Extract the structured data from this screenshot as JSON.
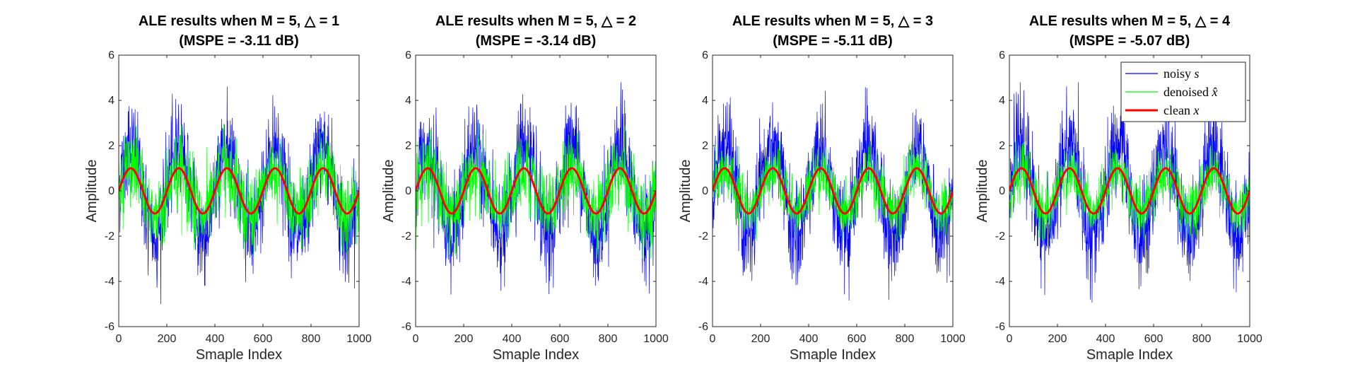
{
  "figure": {
    "background": "#ffffff"
  },
  "colors": {
    "noisy": "#0000ff",
    "denoised": "#00ff00",
    "clean": "#ff0000",
    "axis": "#262626"
  },
  "legend": {
    "placement": "top-right of fourth panel",
    "entries": [
      {
        "key": "noisy",
        "label": "noisy ",
        "var": "s"
      },
      {
        "key": "denoised",
        "label": "denoised ",
        "var": "x̂"
      },
      {
        "key": "clean",
        "label": "clean ",
        "var": "x"
      }
    ]
  },
  "chart_data": [
    {
      "type": "line",
      "title": "ALE results when M = 5, △ = 1",
      "subtitle": "(MSPE = -3.11 dB)",
      "xlabel": "Smaple Index",
      "ylabel": "Amplitude",
      "xlim": [
        0,
        1000
      ],
      "ylim": [
        -6,
        6
      ],
      "xticks": [
        0,
        200,
        400,
        600,
        800,
        1000
      ],
      "yticks": [
        -6,
        -4,
        -2,
        0,
        2,
        4,
        6
      ],
      "series": [
        {
          "key": "noisy",
          "description": "clean sinusoid plus slow sinusoid (period ~200) plus wide noise",
          "envelope_max": 4.8,
          "envelope_min": -5.0
        },
        {
          "key": "denoised",
          "envelope_max": 3.0,
          "envelope_min": -3.0
        },
        {
          "key": "clean",
          "amplitude": 1,
          "period": 200
        }
      ]
    },
    {
      "type": "line",
      "title": "ALE results when M = 5, △ = 2",
      "subtitle": "(MSPE = -3.14 dB)",
      "xlabel": "Smaple Index",
      "ylabel": "Amplitude",
      "xlim": [
        0,
        1000
      ],
      "ylim": [
        -6,
        6
      ],
      "xticks": [
        0,
        200,
        400,
        600,
        800,
        1000
      ],
      "yticks": [
        -6,
        -4,
        -2,
        0,
        2,
        4,
        6
      ],
      "series": [
        {
          "key": "noisy",
          "envelope_max": 4.8,
          "envelope_min": -5.0
        },
        {
          "key": "denoised",
          "envelope_max": 3.0,
          "envelope_min": -3.0
        },
        {
          "key": "clean",
          "amplitude": 1,
          "period": 200
        }
      ]
    },
    {
      "type": "line",
      "title": "ALE results when M = 5, △ = 3",
      "subtitle": "(MSPE = -5.11 dB)",
      "xlabel": "Smaple Index",
      "ylabel": "Amplitude",
      "xlim": [
        0,
        1000
      ],
      "ylim": [
        -6,
        6
      ],
      "xticks": [
        0,
        200,
        400,
        600,
        800,
        1000
      ],
      "yticks": [
        -6,
        -4,
        -2,
        0,
        2,
        4,
        6
      ],
      "series": [
        {
          "key": "noisy",
          "envelope_max": 4.8,
          "envelope_min": -5.0
        },
        {
          "key": "denoised",
          "envelope_max": 2.2,
          "envelope_min": -2.2
        },
        {
          "key": "clean",
          "amplitude": 1,
          "period": 200
        }
      ]
    },
    {
      "type": "line",
      "title": "ALE results when M = 5, △ = 4",
      "subtitle": "(MSPE = -5.07 dB)",
      "xlabel": "Smaple Index",
      "ylabel": "Amplitude",
      "xlim": [
        0,
        1000
      ],
      "ylim": [
        -6,
        6
      ],
      "xticks": [
        0,
        200,
        400,
        600,
        800,
        1000
      ],
      "yticks": [
        -6,
        -4,
        -2,
        0,
        2,
        4,
        6
      ],
      "series": [
        {
          "key": "noisy",
          "envelope_max": 4.8,
          "envelope_min": -5.0
        },
        {
          "key": "denoised",
          "envelope_max": 2.2,
          "envelope_min": -2.2
        },
        {
          "key": "clean",
          "amplitude": 1,
          "period": 200
        }
      ]
    }
  ]
}
